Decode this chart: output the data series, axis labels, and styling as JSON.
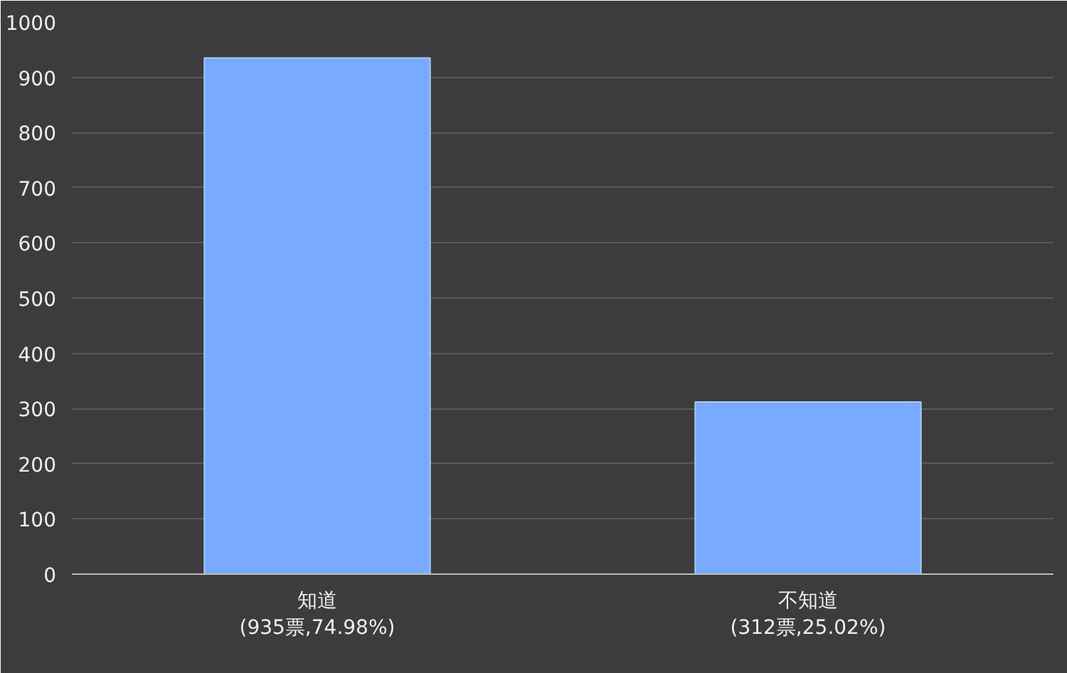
{
  "chart_data": {
    "type": "bar",
    "categories": [
      "知道\n(935票,74.98%)",
      "不知道\n(312票,25.02%)"
    ],
    "values": [
      935,
      312
    ],
    "color": "#78aaff",
    "ylim": [
      0,
      1000
    ],
    "yticks": [
      0,
      100,
      200,
      300,
      400,
      500,
      600,
      700,
      800,
      900,
      1000
    ],
    "grid": "y"
  }
}
